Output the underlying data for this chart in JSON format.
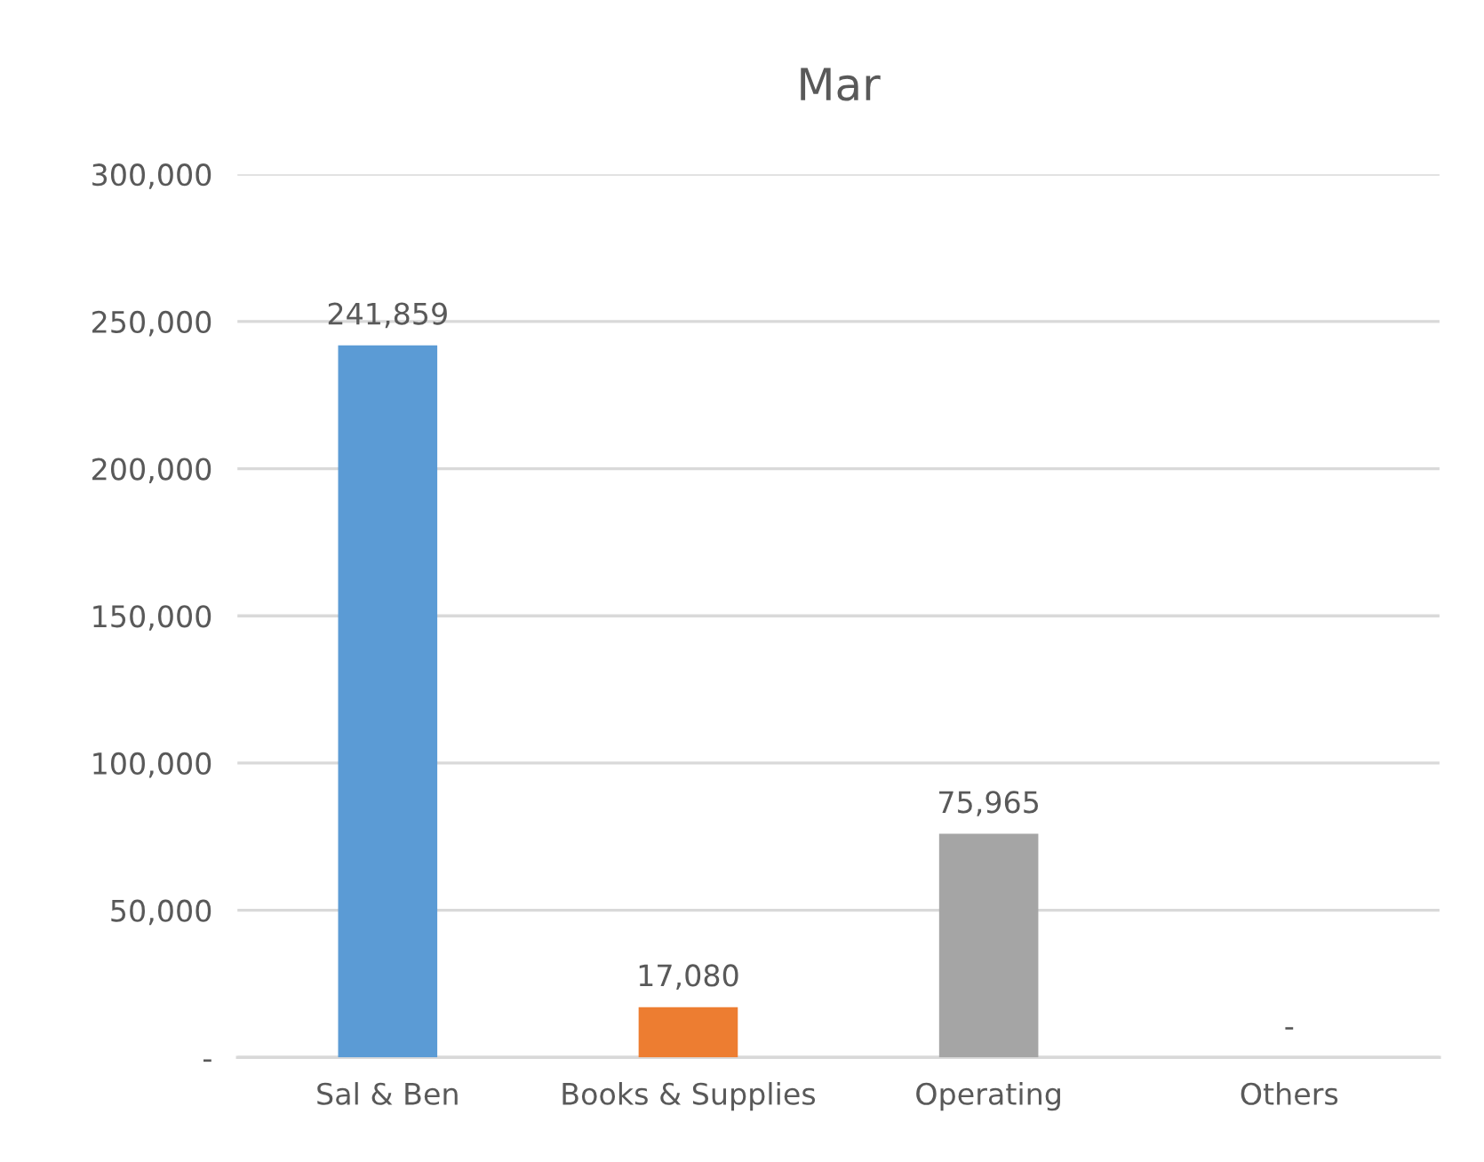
{
  "chart_data": {
    "type": "bar",
    "title": "Mar",
    "categories": [
      "Sal & Ben",
      "Books & Supplies",
      "Operating",
      "Others"
    ],
    "values": [
      241859,
      17080,
      75965,
      0
    ],
    "colors": [
      "#5b9bd5",
      "#ed7d31",
      "#a5a5a5",
      "#ffc000"
    ],
    "value_labels": [
      "241,859",
      "17,080",
      "75,965",
      "-"
    ],
    "ylim": [
      0,
      300000
    ],
    "yticks": [
      {
        "value": 0,
        "label": "-"
      },
      {
        "value": 50000,
        "label": "50,000"
      },
      {
        "value": 100000,
        "label": "100,000"
      },
      {
        "value": 150000,
        "label": "150,000"
      },
      {
        "value": 200000,
        "label": "200,000"
      },
      {
        "value": 250000,
        "label": "250,000"
      },
      {
        "value": 300000,
        "label": "300,000"
      }
    ],
    "grid": "y",
    "legend": false
  }
}
